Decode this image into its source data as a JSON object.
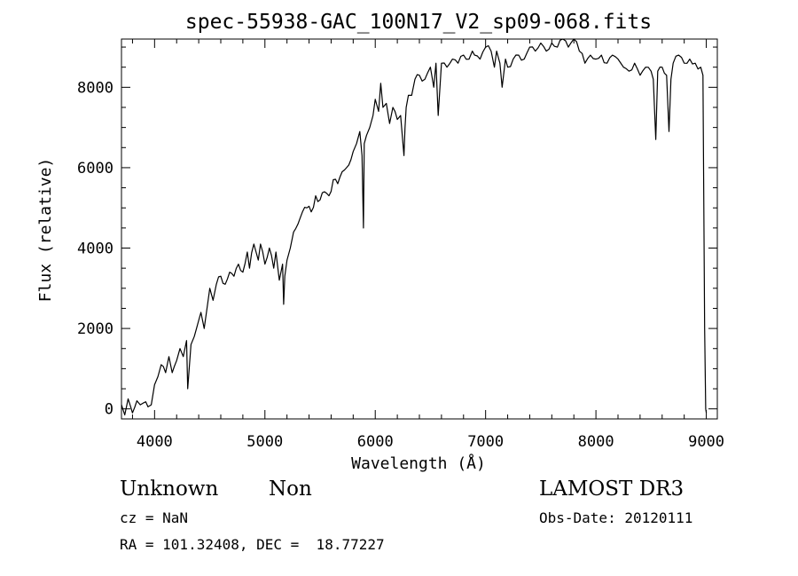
{
  "chart_data": {
    "type": "line",
    "title": "spec-55938-GAC_100N17_V2_sp09-068.fits",
    "xlabel": "Wavelength (Å)",
    "ylabel": "Flux (relative)",
    "xlim": [
      3700,
      9100
    ],
    "ylim": [
      -250,
      9200
    ],
    "x_ticks": [
      4000,
      5000,
      6000,
      7000,
      8000,
      9000
    ],
    "y_ticks": [
      0,
      2000,
      4000,
      6000,
      8000
    ],
    "grid": false,
    "series": [
      {
        "name": "spectrum",
        "x": [
          3700,
          3730,
          3760,
          3800,
          3840,
          3870,
          3900,
          3940,
          3970,
          4000,
          4030,
          4060,
          4100,
          4130,
          4160,
          4200,
          4230,
          4260,
          4290,
          4300,
          4330,
          4360,
          4400,
          4420,
          4450,
          4480,
          4500,
          4530,
          4560,
          4600,
          4640,
          4680,
          4720,
          4760,
          4800,
          4840,
          4860,
          4900,
          4940,
          4960,
          5000,
          5040,
          5080,
          5100,
          5130,
          5160,
          5170,
          5180,
          5200,
          5230,
          5260,
          5300,
          5340,
          5380,
          5420,
          5460,
          5500,
          5540,
          5580,
          5620,
          5660,
          5700,
          5740,
          5780,
          5800,
          5830,
          5860,
          5880,
          5893,
          5900,
          5920,
          5950,
          5980,
          6000,
          6030,
          6050,
          6070,
          6100,
          6130,
          6160,
          6200,
          6230,
          6260,
          6270,
          6280,
          6300,
          6330,
          6360,
          6400,
          6450,
          6500,
          6530,
          6550,
          6570,
          6600,
          6650,
          6700,
          6750,
          6800,
          6850,
          6880,
          6900,
          6950,
          7000,
          7050,
          7080,
          7100,
          7130,
          7150,
          7180,
          7200,
          7250,
          7300,
          7350,
          7400,
          7450,
          7500,
          7550,
          7600,
          7650,
          7700,
          7750,
          7800,
          7850,
          7900,
          7950,
          8000,
          8050,
          8100,
          8150,
          8200,
          8250,
          8300,
          8350,
          8400,
          8450,
          8500,
          8520,
          8542,
          8560,
          8600,
          8640,
          8662,
          8680,
          8700,
          8750,
          8800,
          8850,
          8900,
          8950,
          8970,
          8985,
          8995,
          9000
        ],
        "values": [
          100,
          -150,
          250,
          -100,
          200,
          100,
          150,
          50,
          100,
          600,
          800,
          1100,
          900,
          1300,
          900,
          1200,
          1500,
          1300,
          1700,
          500,
          1600,
          1800,
          2200,
          2400,
          2000,
          2600,
          3000,
          2700,
          3100,
          3300,
          3100,
          3400,
          3300,
          3600,
          3400,
          3900,
          3500,
          4100,
          3700,
          4100,
          3600,
          4000,
          3500,
          3900,
          3200,
          3600,
          2600,
          3300,
          3700,
          4000,
          4400,
          4600,
          4900,
          5000,
          4900,
          5300,
          5200,
          5400,
          5300,
          5700,
          5600,
          5900,
          6000,
          6200,
          6400,
          6600,
          6900,
          6300,
          4500,
          6600,
          6800,
          7000,
          7300,
          7700,
          7400,
          8100,
          7500,
          7600,
          7100,
          7500,
          7200,
          7300,
          6300,
          7000,
          7500,
          7800,
          7800,
          8200,
          8300,
          8200,
          8500,
          8000,
          8600,
          7300,
          8600,
          8500,
          8700,
          8600,
          8800,
          8700,
          8900,
          8800,
          8700,
          9000,
          8900,
          8500,
          8900,
          8600,
          8000,
          8700,
          8500,
          8700,
          8800,
          8700,
          9000,
          8900,
          9100,
          8900,
          9100,
          9000,
          9200,
          9000,
          9200,
          8900,
          8600,
          8800,
          8700,
          8800,
          8600,
          8800,
          8700,
          8500,
          8400,
          8600,
          8300,
          8500,
          8400,
          8200,
          6700,
          8400,
          8500,
          8300,
          6900,
          8200,
          8600,
          8800,
          8600,
          8700,
          8600,
          8500,
          8300,
          2000,
          0,
          -100
        ]
      }
    ]
  },
  "annotations": {
    "object_class": "Unknown",
    "subclass": "Non",
    "survey": "LAMOST DR3",
    "cz": "cz = NaN",
    "obs_date": "Obs-Date: 20120111",
    "coords": "RA = 101.32408, DEC =  18.77227"
  }
}
